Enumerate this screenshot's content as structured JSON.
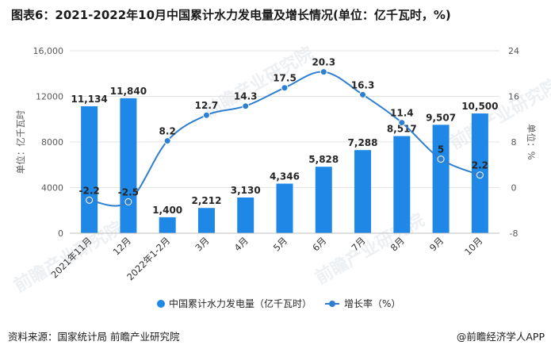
{
  "title": "图表6：2021-2022年10月中国累计水力发电量及增长情况(单位：亿千瓦时，%)",
  "source": "资料来源：国家统计局 前瞻产业研究院",
  "brand": "@前瞻经济学人APP",
  "watermark": "前瞻产业研究院",
  "colors": {
    "bar": "#1f87e6",
    "line": "#2f7fd1",
    "axis_text": "#595959",
    "grid": "#e3e3e3"
  },
  "chart_data": {
    "type": "bar",
    "categories": [
      "2021年11月",
      "12月",
      "2022年1-2月",
      "3月",
      "4月",
      "5月",
      "6月",
      "7月",
      "8月",
      "9月",
      "10月"
    ],
    "series": [
      {
        "name": "中国累计水力发电量（亿千瓦时）",
        "type": "bar",
        "axis": "left",
        "values": [
          11134,
          11840,
          1400,
          2212,
          3130,
          4346,
          5828,
          7288,
          8517,
          9507,
          10500
        ],
        "labels": [
          "11,134",
          "11,840",
          "1,400",
          "2,212",
          "3,130",
          "4,346",
          "5,828",
          "7,288",
          "8,517",
          "9,507",
          "10,500"
        ]
      },
      {
        "name": "增长率（%）",
        "type": "line",
        "axis": "right",
        "values": [
          -2.2,
          -2.5,
          8.2,
          12.7,
          14.3,
          17.5,
          20.3,
          16.3,
          11.4,
          5,
          2.2
        ],
        "labels": [
          "-2.2",
          "-2.5",
          "8.2",
          "12.7",
          "14.3",
          "17.5",
          "20.3",
          "16.3",
          "11.4",
          "5",
          "2.2"
        ]
      }
    ],
    "ylabel": "单位：亿千瓦时",
    "y2label": "单位：%",
    "ylim": [
      0,
      16000
    ],
    "yticks": [
      0,
      4000,
      8000,
      12000,
      16000
    ],
    "ytick_labels": [
      "0",
      "4000",
      "8000",
      "12000",
      "16,000"
    ],
    "y2lim": [
      -8,
      24
    ],
    "y2ticks": [
      -8,
      0,
      8,
      16,
      24
    ],
    "grid": true,
    "legend_position": "bottom"
  }
}
